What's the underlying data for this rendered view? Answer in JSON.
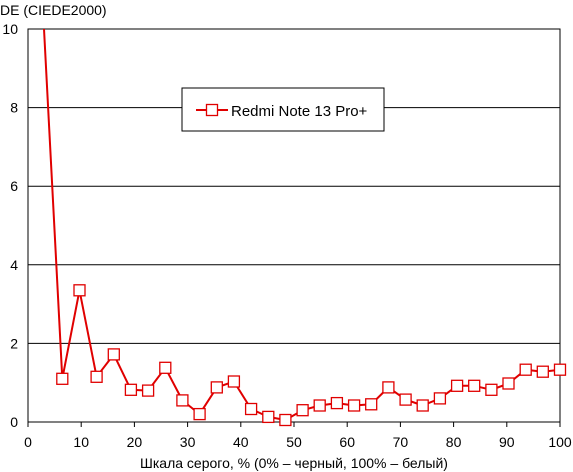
{
  "chart_data": {
    "type": "line",
    "title": "",
    "ylabel": "DE (CIEDE2000)",
    "xlabel": "Шкала серого, % (0% – черный, 100% – белый)",
    "xlim": [
      0,
      100
    ],
    "ylim": [
      0,
      10
    ],
    "xticks": [
      "0",
      "10",
      "20",
      "30",
      "40",
      "50",
      "60",
      "70",
      "80",
      "90",
      "100"
    ],
    "yticks": [
      "0",
      "2",
      "4",
      "6",
      "8",
      "10"
    ],
    "grid": "horizontal",
    "legend_position": "top-center",
    "series": [
      {
        "name": "Redmi Note 13 Pro+",
        "color": "#e00000",
        "marker": "square",
        "line_start": [
          3.0,
          10.0
        ],
        "x": [
          6.45,
          9.68,
          12.9,
          16.13,
          19.35,
          22.58,
          25.81,
          29.03,
          32.26,
          35.48,
          38.71,
          41.94,
          45.16,
          48.39,
          51.61,
          54.84,
          58.06,
          61.29,
          64.52,
          67.74,
          70.97,
          74.19,
          77.42,
          80.65,
          83.87,
          87.1,
          90.32,
          93.55,
          96.77,
          100.0
        ],
        "y": [
          1.1,
          3.35,
          1.15,
          1.72,
          0.82,
          0.8,
          1.38,
          0.55,
          0.2,
          0.88,
          1.03,
          0.33,
          0.13,
          0.05,
          0.3,
          0.42,
          0.48,
          0.42,
          0.45,
          0.88,
          0.57,
          0.42,
          0.6,
          0.92,
          0.92,
          0.82,
          0.98,
          1.33,
          1.28,
          1.33
        ]
      }
    ]
  }
}
